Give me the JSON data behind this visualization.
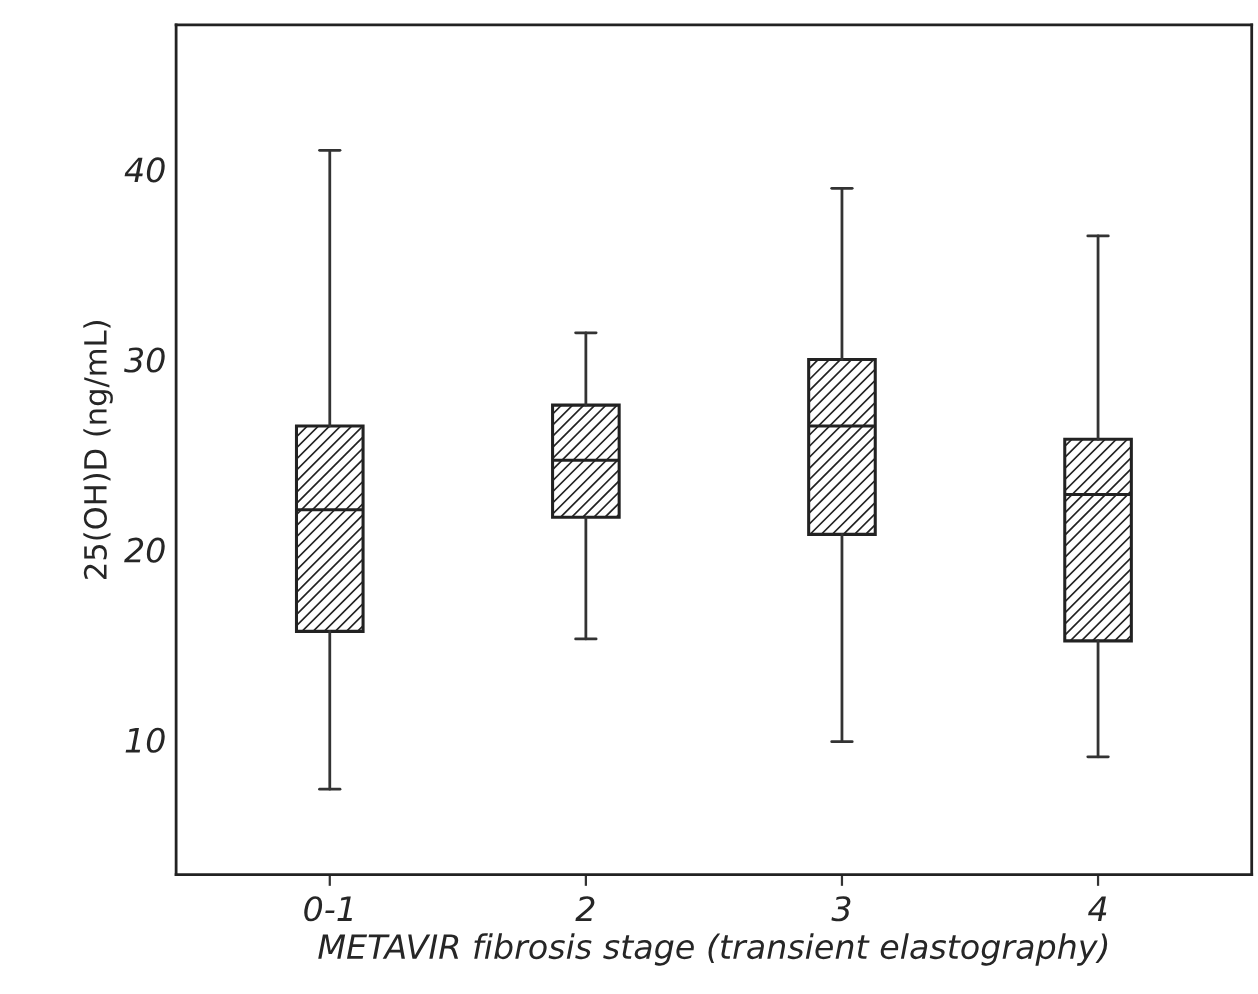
{
  "chart_data": {
    "type": "box",
    "xlabel": "METAVIR fibrosis stage (transient elastography)",
    "ylabel": "25(OH)D (ng/mL)",
    "categories": [
      "0-1",
      "2",
      "3",
      "4"
    ],
    "boxes": [
      {
        "low": 7.4,
        "q1": 15.7,
        "median": 22.1,
        "q3": 26.5,
        "high": 41.0
      },
      {
        "low": 15.3,
        "q1": 21.7,
        "median": 24.7,
        "q3": 27.6,
        "high": 31.4
      },
      {
        "low": 9.9,
        "q1": 20.8,
        "median": 26.5,
        "q3": 30.0,
        "high": 39.0
      },
      {
        "low": 9.1,
        "q1": 15.2,
        "median": 22.9,
        "q3": 25.8,
        "high": 36.5
      }
    ],
    "ylim": [
      2.9,
      47.6
    ],
    "yticks": [
      10,
      20,
      30,
      40
    ],
    "grid": false
  }
}
